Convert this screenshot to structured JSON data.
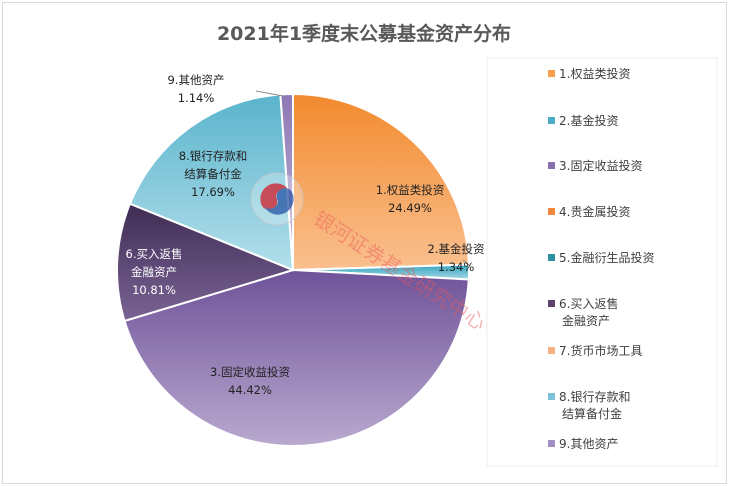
{
  "chart_data": {
    "type": "pie",
    "title": "2021年1季度末公募基金资产分布",
    "slices": [
      {
        "name": "1.权益类投资",
        "label_lines": [
          "1.权益类投资"
        ],
        "legend_lines": [
          "1.权益类投资"
        ],
        "value": 24.49,
        "value_text": "24.49%",
        "color": "#f6a04d"
      },
      {
        "name": "2.基金投资",
        "label_lines": [
          "2.基金投资"
        ],
        "legend_lines": [
          "2.基金投资"
        ],
        "value": 1.34,
        "value_text": "1.34%",
        "color": "#4bacc6"
      },
      {
        "name": "3.固定收益投资",
        "label_lines": [
          "3.固定收益投资"
        ],
        "legend_lines": [
          "3.固定收益投资"
        ],
        "value": 44.42,
        "value_text": "44.42%",
        "color": "#8a6fad"
      },
      {
        "name": "4.贵金属投资",
        "label_lines": [],
        "legend_lines": [
          "4.贵金属投资"
        ],
        "value": 0,
        "value_text": "",
        "color": "#f0873a"
      },
      {
        "name": "5.金融衍生品投资",
        "label_lines": [],
        "legend_lines": [
          "5.金融衍生品投资"
        ],
        "value": 0,
        "value_text": "",
        "color": "#2f8fa3"
      },
      {
        "name": "6.买入返售金融资产",
        "label_lines": [
          "6.买入返售",
          "金融资产"
        ],
        "legend_lines": [
          "6.买入返售",
          "金融资产"
        ],
        "value": 10.81,
        "value_text": "10.81%",
        "color": "#5a4470"
      },
      {
        "name": "7.货币市场工具",
        "label_lines": [],
        "legend_lines": [
          "7.货币市场工具"
        ],
        "value": 0,
        "value_text": "",
        "color": "#f4b183"
      },
      {
        "name": "8.银行存款和结算备付金",
        "label_lines": [
          "8.银行存款和",
          "结算备付金"
        ],
        "legend_lines": [
          "8.银行存款和",
          "结算备付金"
        ],
        "value": 17.69,
        "value_text": "17.69%",
        "color": "#7cc3d7"
      },
      {
        "name": "9.其他资产",
        "label_lines": [
          "9.其他资产"
        ],
        "legend_lines": [
          "9.其他资产"
        ],
        "value": 1.14,
        "value_text": "1.14%",
        "color": "#a390c2"
      }
    ],
    "legend_position": "right"
  },
  "watermark": {
    "text": "银河证券基金研究中心"
  }
}
